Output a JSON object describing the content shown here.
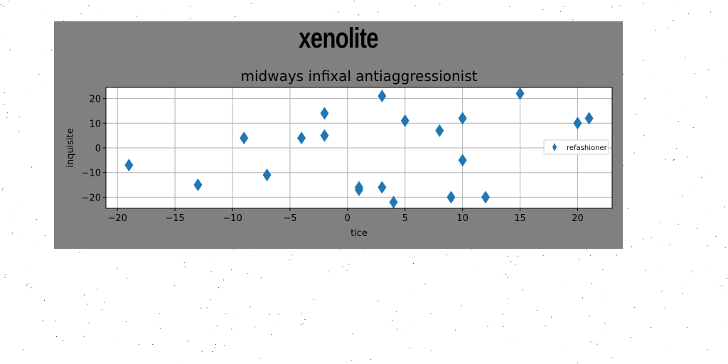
{
  "figure": {
    "suptitle": "xenolite",
    "background": "#808080"
  },
  "chart_data": {
    "type": "scatter",
    "title": "midways infixal antiaggressionist",
    "xlabel": "tice",
    "ylabel": "inquisite",
    "xlim": [
      -21,
      23
    ],
    "ylim": [
      -24.5,
      24.5
    ],
    "xticks": [
      -20,
      -15,
      -10,
      -5,
      0,
      5,
      10,
      15,
      20
    ],
    "yticks": [
      -20,
      -10,
      0,
      10,
      20
    ],
    "grid": true,
    "legend_position": "center-right",
    "marker": "thin_diamond",
    "series": [
      {
        "name": "refashioner",
        "color": "#1f77b4",
        "points": [
          [
            -19,
            -7
          ],
          [
            -13,
            -15
          ],
          [
            -9,
            4
          ],
          [
            -7,
            -11
          ],
          [
            -4,
            4
          ],
          [
            -2,
            14
          ],
          [
            -2,
            5
          ],
          [
            1,
            -16
          ],
          [
            1,
            -17
          ],
          [
            3,
            21
          ],
          [
            3,
            -16
          ],
          [
            4,
            -22
          ],
          [
            5,
            11
          ],
          [
            8,
            7
          ],
          [
            9,
            -20
          ],
          [
            10,
            12
          ],
          [
            10,
            -5
          ],
          [
            12,
            -20
          ],
          [
            15,
            22
          ],
          [
            20,
            10
          ],
          [
            21,
            12
          ]
        ]
      }
    ]
  }
}
